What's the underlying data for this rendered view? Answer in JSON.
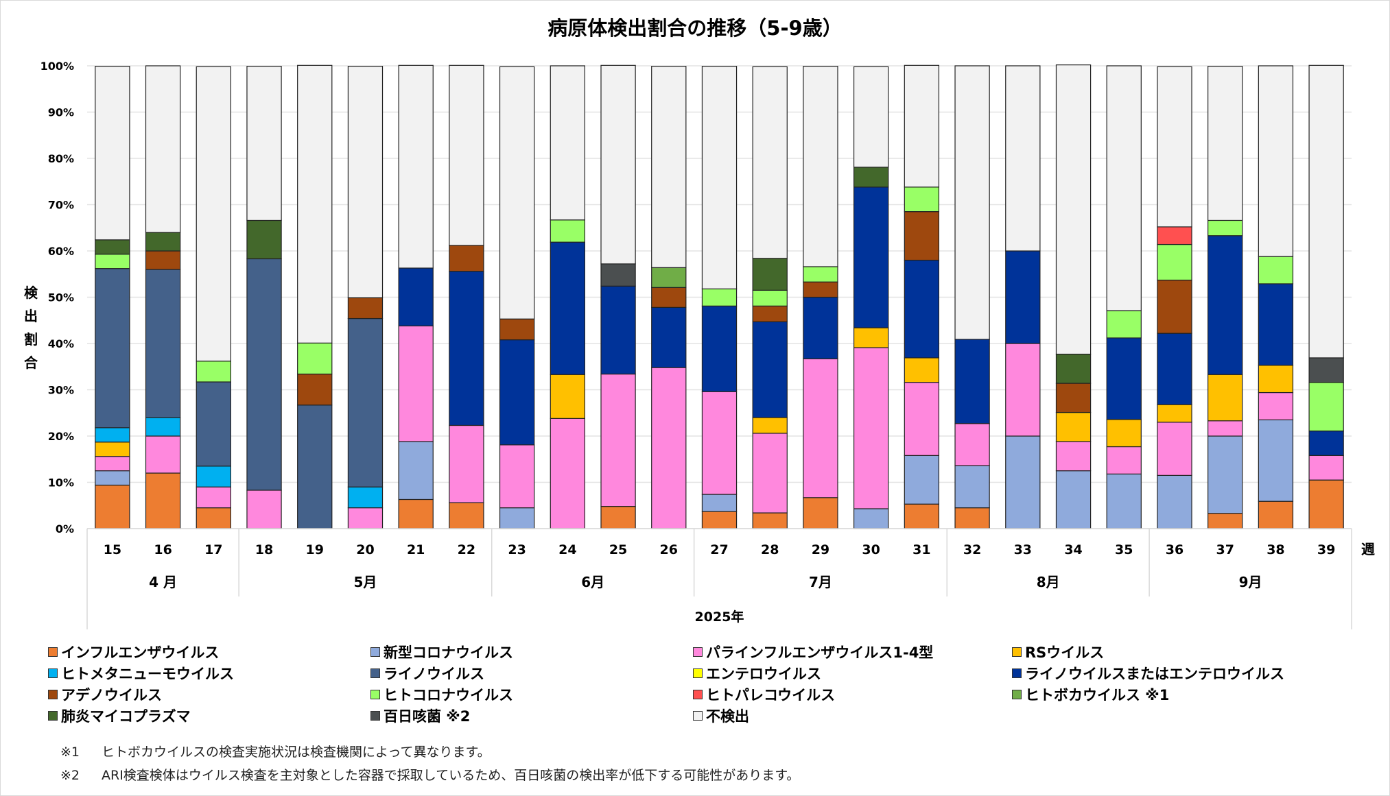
{
  "chart_data": {
    "type": "bar",
    "stacked": true,
    "title": "病原体検出割合の推移（5-9歳）",
    "ylabel": "検出割合",
    "xlabel": "2025年",
    "x_unit_label": "週",
    "ylim": [
      0,
      100
    ],
    "yticks": [
      "0%",
      "10%",
      "20%",
      "30%",
      "40%",
      "50%",
      "60%",
      "70%",
      "80%",
      "90%",
      "100%"
    ],
    "grid": true,
    "legend_position": "bottom",
    "categories": [
      "15",
      "16",
      "17",
      "18",
      "19",
      "20",
      "21",
      "22",
      "23",
      "24",
      "25",
      "26",
      "27",
      "28",
      "29",
      "30",
      "31",
      "32",
      "33",
      "34",
      "35",
      "36",
      "37",
      "38",
      "39"
    ],
    "months": [
      {
        "label": "4 月",
        "weeks": 3
      },
      {
        "label": "5月",
        "weeks": 5
      },
      {
        "label": "6月",
        "weeks": 4
      },
      {
        "label": "7月",
        "weeks": 5
      },
      {
        "label": "8月",
        "weeks": 4
      },
      {
        "label": "9月",
        "weeks": 4
      }
    ],
    "series": [
      {
        "name": "インフルエンザウイルス",
        "color": "#ED7D31",
        "values": [
          9.4,
          12.0,
          4.5,
          0,
          0,
          0,
          6.3,
          5.6,
          0,
          0,
          4.8,
          0,
          3.7,
          3.4,
          6.7,
          0,
          5.3,
          4.5,
          0,
          0,
          0,
          0,
          3.3,
          5.9,
          10.5
        ]
      },
      {
        "name": "新型コロナウイルス",
        "color": "#8FAADC",
        "values": [
          3.1,
          0,
          0,
          0,
          0,
          0,
          12.5,
          0,
          4.5,
          0,
          0,
          0,
          3.7,
          0,
          0,
          4.3,
          10.5,
          9.1,
          20.0,
          12.5,
          11.8,
          11.5,
          16.7,
          17.6,
          0
        ]
      },
      {
        "name": "パラインフルエンザウイルス1-4型",
        "color": "#FF88DD",
        "values": [
          3.1,
          8.0,
          4.5,
          8.3,
          0,
          4.5,
          25.0,
          16.7,
          13.6,
          23.8,
          28.6,
          34.8,
          22.2,
          17.2,
          30.0,
          34.8,
          15.8,
          9.1,
          20.0,
          6.3,
          5.9,
          11.5,
          3.3,
          5.9,
          5.3
        ]
      },
      {
        "name": "RSウイルス",
        "color": "#FFC000",
        "values": [
          3.1,
          0,
          0,
          0,
          0,
          0,
          0,
          0,
          0,
          9.5,
          0,
          0,
          0,
          3.4,
          0,
          4.3,
          5.3,
          0,
          0,
          6.3,
          5.9,
          3.8,
          10.0,
          5.9,
          0
        ]
      },
      {
        "name": "ヒトメタニューモウイルス",
        "color": "#00B0F0",
        "values": [
          3.1,
          4.0,
          4.5,
          0,
          0,
          4.5,
          0,
          0,
          0,
          0,
          0,
          0,
          0,
          0,
          0,
          0,
          0,
          0,
          0,
          0,
          0,
          0,
          0,
          0,
          0
        ]
      },
      {
        "name": "ライノウイルス",
        "color": "#44618A",
        "values": [
          34.4,
          32.0,
          18.2,
          50.0,
          26.7,
          36.4,
          0,
          0,
          0,
          0,
          0,
          0,
          0,
          0,
          0,
          0,
          0,
          0,
          0,
          0,
          0,
          0,
          0,
          0,
          0
        ]
      },
      {
        "name": "エンテロウイルス",
        "color": "#FFFF00",
        "values": [
          0,
          0,
          0,
          0,
          0,
          0,
          0,
          0,
          0,
          0,
          0,
          0,
          0,
          0,
          0,
          0,
          0,
          0,
          0,
          0,
          0,
          0,
          0,
          0,
          0
        ]
      },
      {
        "name": "ライノウイルスまたはエンテロウイルス",
        "color": "#003399",
        "values": [
          0,
          0,
          0,
          0,
          0,
          0,
          12.5,
          33.3,
          22.7,
          28.6,
          19.0,
          13.0,
          18.5,
          20.7,
          13.3,
          30.4,
          21.1,
          18.2,
          20.0,
          0,
          17.6,
          15.4,
          30.0,
          17.6,
          5.3
        ]
      },
      {
        "name": "アデノウイルス",
        "color": "#9E480E",
        "values": [
          0,
          4.0,
          0,
          0,
          6.7,
          4.5,
          0,
          5.6,
          4.5,
          0,
          0,
          4.3,
          0,
          3.4,
          3.3,
          0,
          10.5,
          0,
          0,
          6.3,
          0,
          11.5,
          0,
          0,
          0
        ]
      },
      {
        "name": "ヒトコロナウイルス",
        "color": "#99FF66",
        "values": [
          3.1,
          0,
          4.5,
          0,
          6.7,
          0,
          0,
          0,
          0,
          4.8,
          0,
          0,
          3.7,
          3.4,
          3.3,
          0,
          5.3,
          0,
          0,
          0,
          5.9,
          7.7,
          3.3,
          5.9,
          10.5
        ]
      },
      {
        "name": "ヒトパレコウイルス",
        "color": "#FF5050",
        "values": [
          0,
          0,
          0,
          0,
          0,
          0,
          0,
          0,
          0,
          0,
          0,
          0,
          0,
          0,
          0,
          0,
          0,
          0,
          0,
          0,
          0,
          3.8,
          0,
          0,
          0
        ]
      },
      {
        "name": "ヒトボカウイルス ※1",
        "color": "#70AD47",
        "values": [
          0,
          0,
          0,
          0,
          0,
          0,
          0,
          0,
          0,
          0,
          0,
          4.3,
          0,
          0,
          0,
          0,
          0,
          0,
          0,
          0,
          0,
          0,
          0,
          0,
          0
        ]
      },
      {
        "name": "肺炎マイコプラズマ",
        "color": "#43682B",
        "values": [
          3.1,
          4.0,
          0,
          8.3,
          0,
          0,
          0,
          0,
          0,
          0,
          0,
          0,
          0,
          6.9,
          0,
          4.3,
          0,
          0,
          0,
          6.3,
          0,
          0,
          0,
          0,
          0
        ]
      },
      {
        "name": "百日咳菌 ※2",
        "color": "#4B4F50",
        "values": [
          0,
          0,
          0,
          0,
          0,
          0,
          0,
          0,
          0,
          0,
          4.8,
          0,
          0,
          0,
          0,
          0,
          0,
          0,
          0,
          0,
          0,
          0,
          0,
          0,
          5.3
        ]
      },
      {
        "name": "不検出",
        "color": "#F2F2F2",
        "values": [
          37.5,
          36.0,
          63.6,
          33.3,
          60.0,
          50.0,
          43.8,
          38.9,
          54.5,
          33.3,
          42.9,
          43.5,
          48.1,
          41.4,
          43.3,
          21.7,
          26.3,
          59.1,
          40.0,
          62.5,
          52.9,
          34.6,
          33.3,
          41.2,
          63.2
        ]
      }
    ]
  },
  "legend_layout": [
    [
      "インフルエンザウイルス",
      "新型コロナウイルス",
      "パラインフルエンザウイルス1-4型",
      "RSウイルス"
    ],
    [
      "ヒトメタニューモウイルス",
      "ライノウイルス",
      "エンテロウイルス",
      "ライノウイルスまたはエンテロウイルス"
    ],
    [
      "アデノウイルス",
      "ヒトコロナウイルス",
      "ヒトパレコウイルス",
      "ヒトボカウイルス ※1"
    ],
    [
      "肺炎マイコプラズマ",
      "百日咳菌 ※2",
      "不検出"
    ]
  ],
  "notes": [
    {
      "mark": "※1",
      "text": "ヒトボカウイルスの検査実施状況は検査機関によって異なります。"
    },
    {
      "mark": "※2",
      "text": "ARI検査検体はウイルス検査を主対象とした容器で採取しているため、百日咳菌の検出率が低下する可能性があります。"
    }
  ],
  "ylabel_chars": [
    "検",
    "出",
    "割",
    "合"
  ]
}
